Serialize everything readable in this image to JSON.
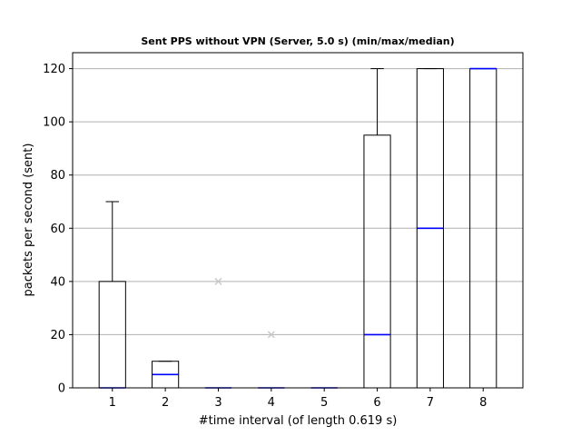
{
  "chart_data": {
    "type": "boxplot",
    "title": "Sent PPS without VPN (Server, 5.0 s) (min/max/median)",
    "xlabel": "#time interval (of length 0.619 s)",
    "ylabel": "packets per second (sent)",
    "ylim": [
      0,
      126
    ],
    "yticks": [
      0,
      20,
      40,
      60,
      80,
      100,
      120
    ],
    "categories": [
      "1",
      "2",
      "3",
      "4",
      "5",
      "6",
      "7",
      "8"
    ],
    "grid": "y",
    "colors": {
      "box": "#000000",
      "median": "#0000ff",
      "outlier": "#c8c8c8",
      "grid": "#b0b0b0"
    },
    "boxes": [
      {
        "whislo": 0,
        "q1": 0,
        "med": 0,
        "q3": 40,
        "whishi": 70,
        "fliers": []
      },
      {
        "whislo": 0,
        "q1": 0,
        "med": 5,
        "q3": 10,
        "whishi": 10,
        "fliers": []
      },
      {
        "whislo": 0,
        "q1": 0,
        "med": 0,
        "q3": 0,
        "whishi": 0,
        "fliers": [
          40
        ]
      },
      {
        "whislo": 0,
        "q1": 0,
        "med": 0,
        "q3": 0,
        "whishi": 0,
        "fliers": [
          20
        ]
      },
      {
        "whislo": 0,
        "q1": 0,
        "med": 0,
        "q3": 0,
        "whishi": 0,
        "fliers": []
      },
      {
        "whislo": 0,
        "q1": 0,
        "med": 20,
        "q3": 95,
        "whishi": 120,
        "fliers": []
      },
      {
        "whislo": 0,
        "q1": 0,
        "med": 60,
        "q3": 120,
        "whishi": 120,
        "fliers": []
      },
      {
        "whislo": 0,
        "q1": 0,
        "med": 120,
        "q3": 120,
        "whishi": 120,
        "fliers": []
      }
    ]
  }
}
